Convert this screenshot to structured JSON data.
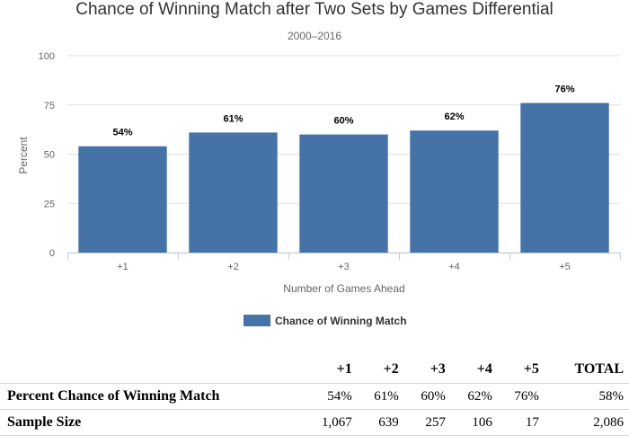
{
  "chart_data": {
    "type": "bar",
    "title": "Chance of Winning Match after Two Sets by Games Differential",
    "subtitle": "2000–2016",
    "xlabel": "Number of Games Ahead",
    "ylabel": "Percent",
    "categories": [
      "+1",
      "+2",
      "+3",
      "+4",
      "+5"
    ],
    "series": [
      {
        "name": "Chance of Winning Match",
        "values": [
          54,
          61,
          60,
          62,
          76
        ],
        "labels": [
          "54%",
          "61%",
          "60%",
          "62%",
          "76%"
        ]
      }
    ],
    "ylim": [
      0,
      100
    ],
    "yticks": [
      "0",
      "25",
      "50",
      "75",
      "100"
    ],
    "grid": true,
    "legend": "bottom",
    "color": "#4572a7"
  },
  "table": {
    "headers": [
      "",
      "+1",
      "+2",
      "+3",
      "+4",
      "+5",
      "TOTAL"
    ],
    "rows": [
      {
        "label": "Percent Chance of Winning Match",
        "cells": [
          "54%",
          "61%",
          "60%",
          "62%",
          "76%",
          "58%"
        ]
      },
      {
        "label": "Sample Size",
        "cells": [
          "1,067",
          "639",
          "257",
          "106",
          "17",
          "2,086"
        ]
      }
    ]
  }
}
